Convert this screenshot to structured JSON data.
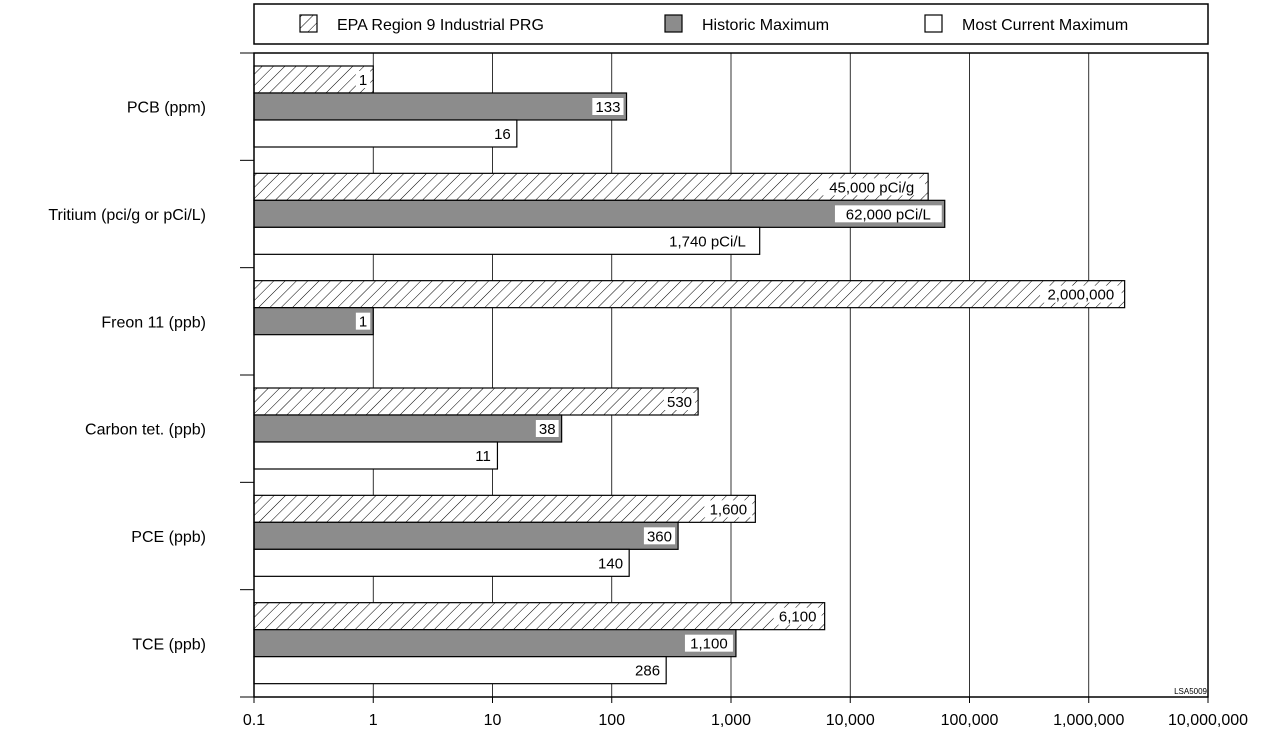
{
  "chart_data": {
    "type": "bar",
    "orientation": "horizontal",
    "x_scale": "log",
    "xlim": [
      0.1,
      10000000
    ],
    "x_tick_labels": [
      "0.1",
      "1",
      "10",
      "100",
      "1,000",
      "10,000",
      "100,000",
      "1,000,000",
      "10,000,000"
    ],
    "grid": "vertical lines at each decade",
    "legend_position": "top",
    "legend": [
      {
        "label": "EPA Region 9 Industrial PRG",
        "style": "hatched"
      },
      {
        "label": "Historic Maximum",
        "style": "gray"
      },
      {
        "label": "Most Current Maximum",
        "style": "white"
      }
    ],
    "categories": [
      "PCB (ppm)",
      "Tritium (pci/g or pCi/L)",
      "Freon 11 (ppb)",
      "Carbon tet. (ppb)",
      "PCE (ppb)",
      "TCE (ppb)"
    ],
    "series": [
      {
        "name": "EPA Region 9 Industrial PRG",
        "values": [
          1,
          45000,
          2000000,
          530,
          1600,
          6100
        ],
        "labels": [
          "1",
          "45,000 pCi/g",
          "2,000,000",
          "530",
          "1,600",
          "6,100"
        ]
      },
      {
        "name": "Historic Maximum",
        "values": [
          133,
          62000,
          1,
          38,
          360,
          1100
        ],
        "labels": [
          "133",
          "62,000 pCi/L",
          "1",
          "38",
          "360",
          "1,100"
        ]
      },
      {
        "name": "Most Current Maximum",
        "values": [
          16,
          1740,
          null,
          11,
          140,
          286
        ],
        "labels": [
          "16",
          "1,740 pCi/L",
          "",
          "11",
          "140",
          "286"
        ]
      }
    ],
    "annotation": "LSA5009",
    "colors": {
      "historic": "#8c8c8c",
      "current": "#ffffff",
      "hatch": "#ffffff",
      "outline": "#000000",
      "grid": "#000000"
    }
  }
}
